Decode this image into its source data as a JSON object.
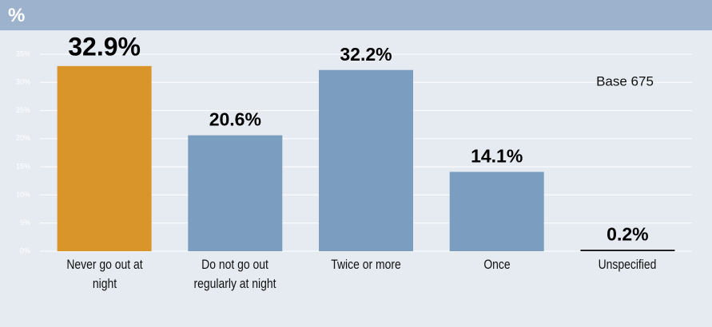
{
  "chart_data": {
    "type": "bar",
    "title": "%",
    "categories": [
      "Never go out at night",
      "Do not go out regularly at night",
      "Twice or more",
      "Once",
      "Unspecified"
    ],
    "values": [
      32.9,
      20.6,
      32.2,
      14.1,
      0.2
    ],
    "value_labels": [
      "32.9%",
      "20.6%",
      "32.2%",
      "14.1%",
      "0.2%"
    ],
    "colors": [
      "#d9952a",
      "#7b9ec0",
      "#7b9ec0",
      "#7b9ec0",
      "#222222"
    ],
    "ylim": [
      0,
      35
    ],
    "yticks": [
      {
        "value": 0,
        "label": "0%"
      },
      {
        "value": 5,
        "label": "5%"
      },
      {
        "value": 10,
        "label": "10%"
      },
      {
        "value": 15,
        "label": "15%"
      },
      {
        "value": 20,
        "label": "20%"
      },
      {
        "value": 25,
        "label": "25%"
      },
      {
        "value": 30,
        "label": "30%"
      },
      {
        "value": 35,
        "label": "35%"
      }
    ],
    "grid": true,
    "annotation": "Base 675"
  }
}
